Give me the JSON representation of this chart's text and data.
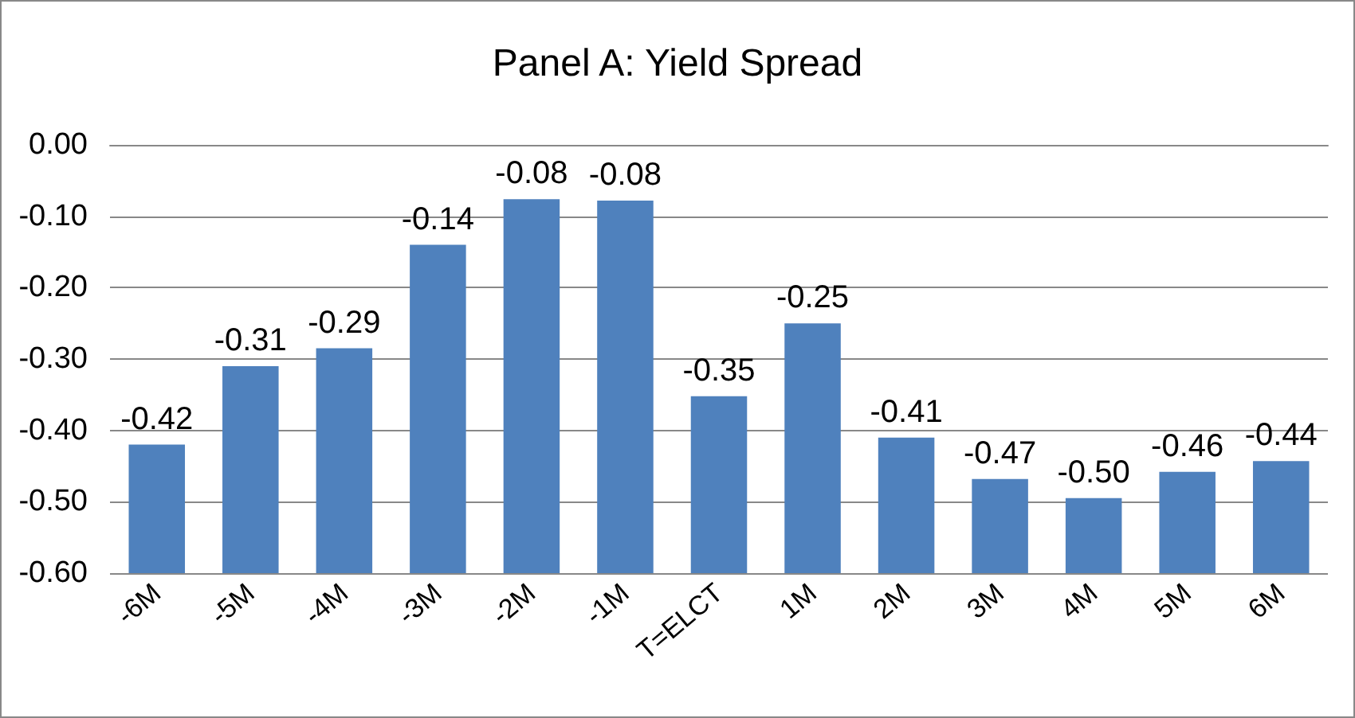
{
  "chart_data": {
    "type": "bar",
    "title": "Panel A: Yield Spread",
    "categories": [
      "-6M",
      "-5M",
      "-4M",
      "-3M",
      "-2M",
      "-1M",
      "T=ELCT",
      "1M",
      "2M",
      "3M",
      "4M",
      "5M",
      "6M"
    ],
    "base": [
      -0.6,
      -0.6,
      -0.6,
      -0.6,
      -0.6,
      -0.6,
      -0.6,
      -0.6,
      -0.6,
      -0.6,
      -0.6,
      -0.6,
      -0.6
    ],
    "values": [
      0.18,
      0.29,
      0.315,
      0.46,
      0.524,
      0.522,
      0.248,
      0.35,
      0.19,
      0.132,
      0.105,
      0.142,
      0.157
    ],
    "value_labels": [
      "-0.42",
      "-0.31",
      "-0.29",
      "-0.14",
      "-0.08",
      "-0.08",
      "-0.35",
      "-0.25",
      "-0.41",
      "-0.47",
      "-0.50",
      "-0.46",
      "-0.44"
    ],
    "color": "#4f81bd",
    "ylim": [
      -0.6,
      0
    ],
    "yticks": [
      {
        "value": -0.6,
        "label": "-0.60"
      },
      {
        "value": -0.5,
        "label": "-0.50"
      },
      {
        "value": -0.4,
        "label": "-0.40"
      },
      {
        "value": -0.3,
        "label": "-0.30"
      },
      {
        "value": -0.2,
        "label": "-0.20"
      },
      {
        "value": -0.1,
        "label": "-0.10"
      },
      {
        "value": 0,
        "label": "0.00"
      }
    ],
    "grid": "y"
  }
}
